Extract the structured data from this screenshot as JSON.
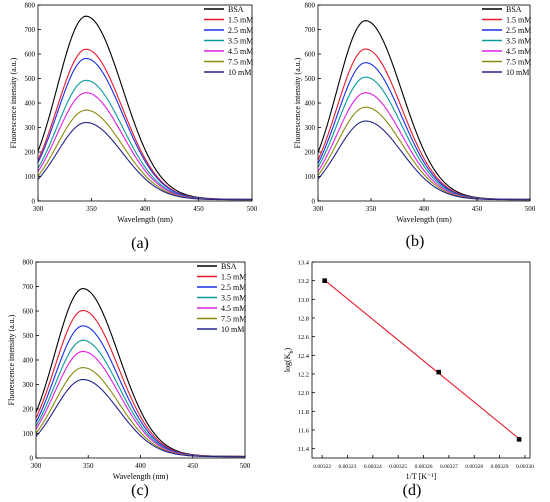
{
  "chart_data": [
    {
      "panel_label": "(a)",
      "type": "line",
      "xlabel": "Wavelength (nm)",
      "ylabel": "Fluorescence intensity (a.u.)",
      "xlim": [
        300,
        500
      ],
      "ylim": [
        0,
        800
      ],
      "xticks": [
        "300",
        "350",
        "400",
        "450",
        "500"
      ],
      "yticks": [
        "0",
        "100",
        "200",
        "300",
        "400",
        "500",
        "600",
        "700",
        "800"
      ],
      "legend_position": "top-right",
      "peak_x": 345,
      "series": [
        {
          "name": "BSA",
          "color": "#000000",
          "peak": 740
        },
        {
          "name": "1.5 mM",
          "color": "#e8192c",
          "peak": 607
        },
        {
          "name": "2.5 mM",
          "color": "#1a2ee8",
          "peak": 570
        },
        {
          "name": "3.5 mM",
          "color": "#0a9a9a",
          "peak": 482
        },
        {
          "name": "4.5 mM",
          "color": "#e020e0",
          "peak": 432
        },
        {
          "name": "7.5 mM",
          "color": "#8a8a10",
          "peak": 362
        },
        {
          "name": "10 mM",
          "color": "#24248a",
          "peak": 312
        }
      ]
    },
    {
      "panel_label": "(b)",
      "type": "line",
      "xlabel": "Wavelength (nm)",
      "ylabel": "Fluorescence intensity (a.u.)",
      "xlim": [
        300,
        500
      ],
      "ylim": [
        0,
        800
      ],
      "xticks": [
        "300",
        "350",
        "400",
        "450",
        "500"
      ],
      "yticks": [
        "0",
        "100",
        "200",
        "300",
        "400",
        "500",
        "600",
        "700",
        "800"
      ],
      "legend_position": "top-right",
      "peak_x": 345,
      "series": [
        {
          "name": "BSA",
          "color": "#000000",
          "peak": 722
        },
        {
          "name": "1.5 mM",
          "color": "#e8192c",
          "peak": 608
        },
        {
          "name": "2.5 mM",
          "color": "#1a2ee8",
          "peak": 553
        },
        {
          "name": "3.5 mM",
          "color": "#0a9a9a",
          "peak": 495
        },
        {
          "name": "4.5 mM",
          "color": "#e020e0",
          "peak": 432
        },
        {
          "name": "7.5 mM",
          "color": "#8a8a10",
          "peak": 374
        },
        {
          "name": "10 mM",
          "color": "#24248a",
          "peak": 318
        }
      ]
    },
    {
      "panel_label": "(c)",
      "type": "line",
      "xlabel": "Wavelength (nm)",
      "ylabel": "Fluorescence intensity (a.u.)",
      "xlim": [
        300,
        500
      ],
      "ylim": [
        0,
        800
      ],
      "xticks": [
        "300",
        "350",
        "400",
        "450",
        "500"
      ],
      "yticks": [
        "0",
        "100",
        "200",
        "300",
        "400",
        "500",
        "600",
        "700",
        "800"
      ],
      "legend_position": "top-right",
      "peak_x": 345,
      "series": [
        {
          "name": "BSA",
          "color": "#000000",
          "peak": 678
        },
        {
          "name": "1.5 mM",
          "color": "#e8192c",
          "peak": 590
        },
        {
          "name": "2.5 mM",
          "color": "#1a2ee8",
          "peak": 528
        },
        {
          "name": "3.5 mM",
          "color": "#0a9a9a",
          "peak": 470
        },
        {
          "name": "4.5 mM",
          "color": "#e020e0",
          "peak": 425
        },
        {
          "name": "7.5 mM",
          "color": "#8a8a10",
          "peak": 360
        },
        {
          "name": "10 mM",
          "color": "#24248a",
          "peak": 312
        }
      ]
    },
    {
      "panel_label": "(d)",
      "type": "scatter",
      "xlabel": "1/T [K⁻¹]",
      "ylabel": "log(K",
      "ylabel_sub": "b",
      "ylabel_end": ")",
      "xlim": [
        0.003216,
        0.003302
      ],
      "ylim": [
        11.3,
        13.4
      ],
      "xticks": [
        "0.00322",
        "0.00323",
        "0.00324",
        "0.00325",
        "0.00326",
        "0.00327",
        "0.00328",
        "0.00329",
        "0.00330"
      ],
      "yticks": [
        "11.4",
        "11.6",
        "11.8",
        "12.0",
        "12.2",
        "12.4",
        "12.6",
        "12.8",
        "13.0",
        "13.2",
        "13.4"
      ],
      "fit_color": "#e8192c",
      "marker_color": "#000000",
      "points": [
        {
          "x": 0.003221,
          "y": 13.2
        },
        {
          "x": 0.003266,
          "y": 12.22
        },
        {
          "x": 0.0032977,
          "y": 11.5
        }
      ]
    }
  ]
}
